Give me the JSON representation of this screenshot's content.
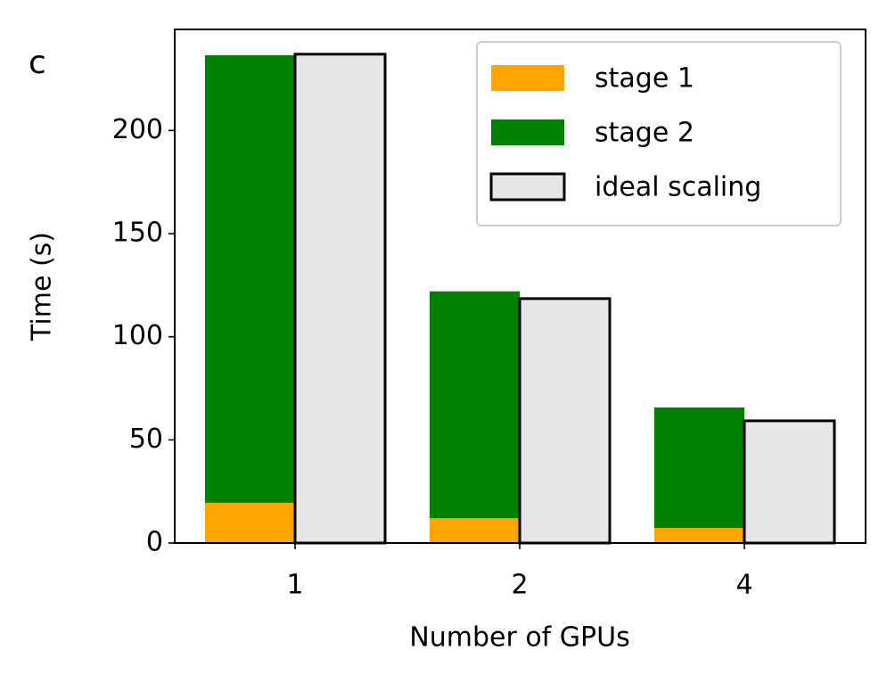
{
  "chart_data": {
    "type": "bar",
    "panel_label": "c",
    "x_label": "Number of GPUs",
    "y_label": "Time (s)",
    "categories": [
      "1",
      "2",
      "4"
    ],
    "series": [
      {
        "name": "stage 1",
        "color": "#ffa500",
        "values": [
          19.5,
          12,
          7.3
        ]
      },
      {
        "name": "stage 2",
        "color": "#008000",
        "values": [
          217,
          110,
          58.4
        ]
      },
      {
        "name": "ideal scaling",
        "color": "#e6e6e6",
        "edgecolor": "#000000",
        "values": [
          237,
          118.5,
          59.25
        ]
      }
    ],
    "ylim": [
      0,
      249
    ],
    "yticks": [
      0,
      50,
      100,
      150,
      200
    ],
    "legend": "upper right"
  }
}
